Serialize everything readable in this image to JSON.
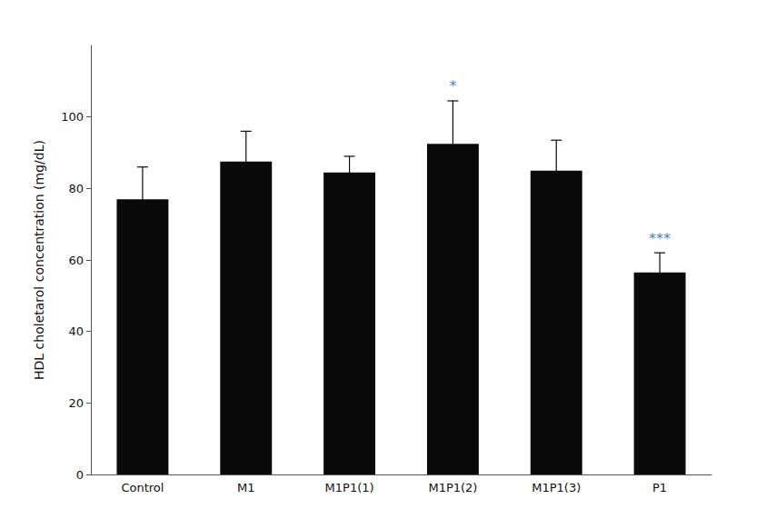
{
  "chart_data": {
    "type": "bar",
    "categories": [
      "Control",
      "M1",
      "M1P1(1)",
      "M1P1(2)",
      "M1P1(3)",
      "P1"
    ],
    "values": [
      77.0,
      87.5,
      84.5,
      92.5,
      85.0,
      56.5
    ],
    "errors": [
      9.0,
      8.5,
      4.5,
      12.0,
      8.5,
      5.5
    ],
    "color": "#0a0a0a",
    "ylabel": "HDL choletarol concentration (mg/dL)",
    "ylim": [
      0,
      120
    ],
    "yticks": [
      0,
      20,
      40,
      60,
      80,
      100
    ],
    "grid": false,
    "annotations": [
      {
        "category": "M1P1(2)",
        "text": "*",
        "color": "#1e5fa8"
      },
      {
        "category": "P1",
        "text": "***",
        "color": "#1e5fa8"
      }
    ]
  }
}
